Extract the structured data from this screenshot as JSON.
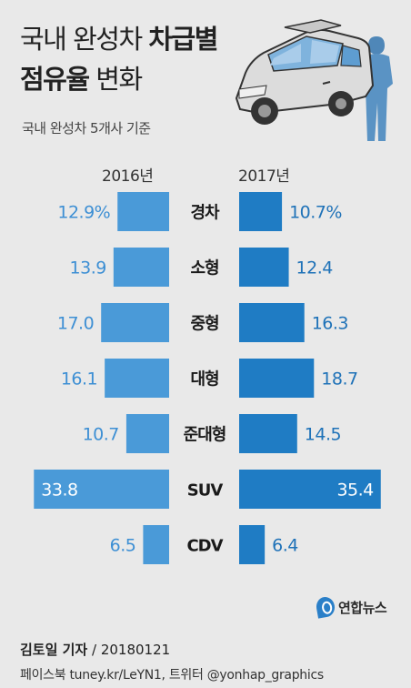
{
  "title": {
    "line1_regular": "국내 완성차",
    "line1_bold": "차급별",
    "line2_bold": "점유율",
    "line2_regular": "변화"
  },
  "subtitle": "국내 완성차 5개사 기준",
  "footer": {
    "author": "김토일 기자",
    "date_text": "/ 20180121",
    "social": "페이스북 tuney.kr/LeYN1, 트위터 @yonhap_graphics"
  },
  "logo_text": "연합뉴스",
  "colors": {
    "left_bar": "#4a9ad8",
    "right_bar": "#1f7cc4",
    "left_value_text": "#3d8fd4",
    "right_value_text": "#1f72b8",
    "background": "#e9e9e9"
  },
  "chart_data": {
    "type": "bar",
    "layout": "diverging-horizontal",
    "categories": [
      "경차",
      "소형",
      "중형",
      "대형",
      "준대형",
      "SUV",
      "CDV"
    ],
    "series": [
      {
        "name": "2016년",
        "values": [
          12.9,
          13.9,
          17.0,
          16.1,
          10.7,
          33.8,
          6.5
        ],
        "labels": [
          "12.9%",
          "13.9",
          "17.0",
          "16.1",
          "10.7",
          "33.8",
          "6.5"
        ]
      },
      {
        "name": "2017년",
        "values": [
          10.7,
          12.4,
          16.3,
          18.7,
          14.5,
          35.4,
          6.4
        ],
        "labels": [
          "10.7%",
          "12.4",
          "16.3",
          "18.7",
          "14.5",
          "35.4",
          "6.4"
        ]
      }
    ],
    "unit": "%",
    "title": "국내 완성차 차급별 점유율 변화",
    "subtitle": "국내 완성차 5개사 기준",
    "grid": false,
    "legend": "none"
  }
}
